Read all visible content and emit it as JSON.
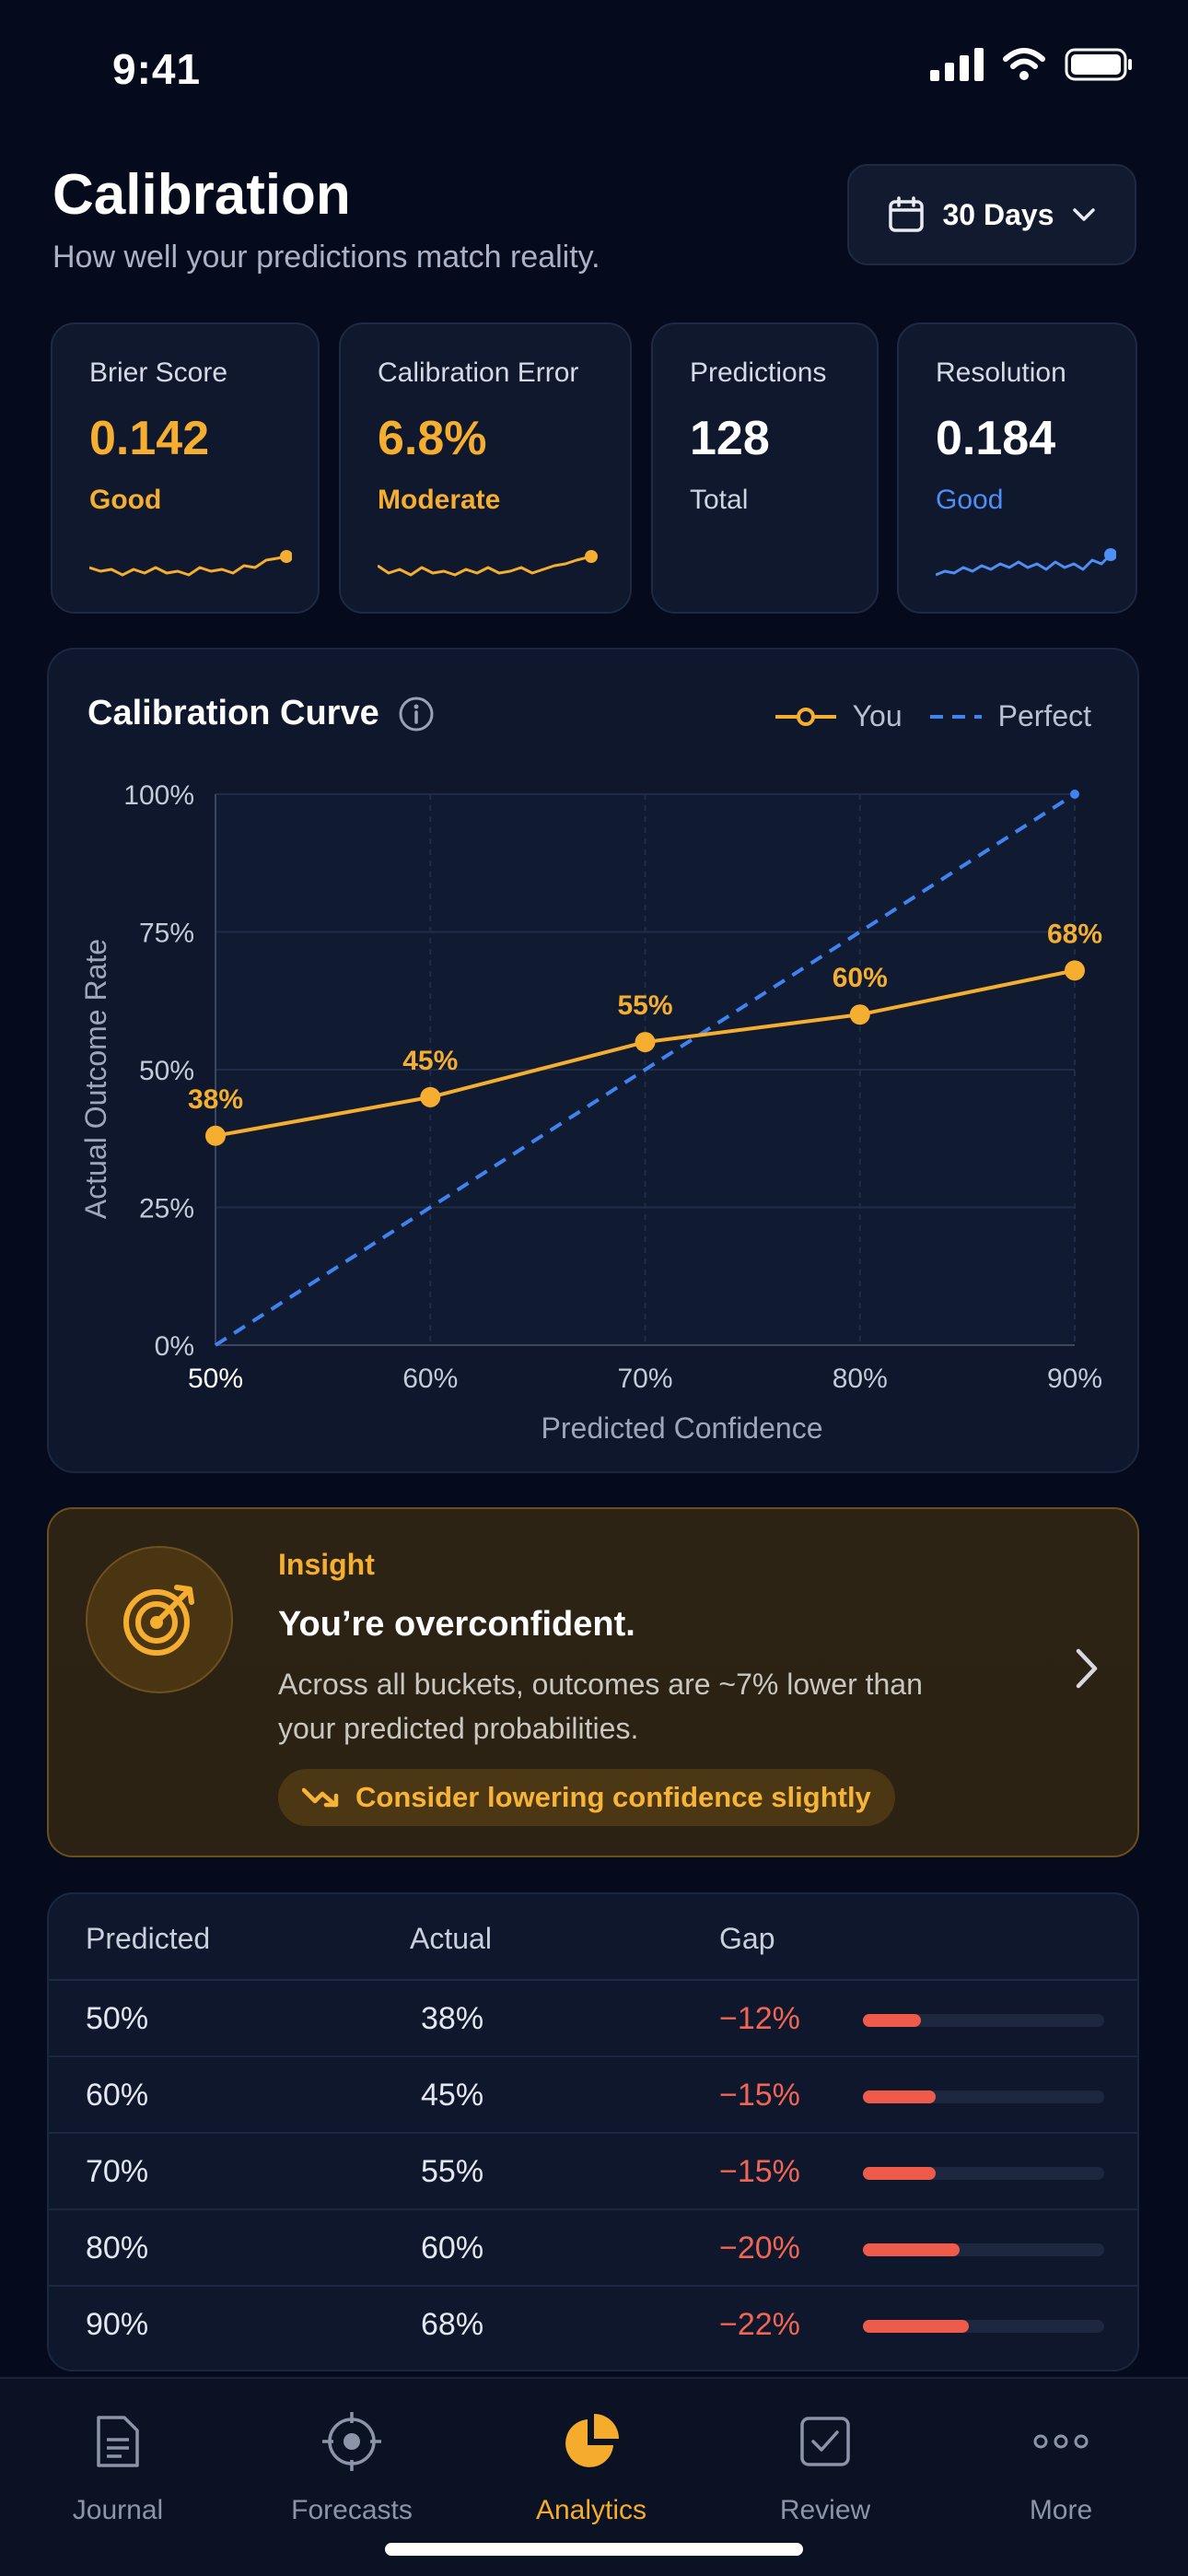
{
  "status_bar": {
    "time": "9:41"
  },
  "header": {
    "title": "Calibration",
    "subtitle": "How well your predictions match reality.",
    "range_label": "30 Days",
    "range_icon": "calendar-icon"
  },
  "metrics": [
    {
      "label": "Brier Score",
      "value": "0.142",
      "status": "Good",
      "color": "#f5ae2f"
    },
    {
      "label": "Calibration Error",
      "value": "6.8%",
      "status": "Moderate",
      "color": "#f5ae2f"
    },
    {
      "label": "Predictions",
      "value": "128",
      "status": "Total",
      "color": "#ffffff"
    },
    {
      "label": "Resolution",
      "value": "0.184",
      "status": "Good",
      "color": "#4d8ff5"
    }
  ],
  "chart_data": {
    "type": "line",
    "title": "Calibration Curve",
    "xlabel": "Predicted Confidence",
    "ylabel": "Actual Outcome Rate",
    "x_ticks": [
      "50%",
      "60%",
      "70%",
      "80%",
      "90%"
    ],
    "y_ticks": [
      "0%",
      "25%",
      "50%",
      "75%",
      "100%"
    ],
    "xlim": [
      50,
      90
    ],
    "ylim": [
      0,
      100
    ],
    "legend_position": "top-right",
    "grid": true,
    "series": [
      {
        "name": "You",
        "style": "solid-markers",
        "color": "#f5ae2f",
        "x": [
          50,
          60,
          70,
          80,
          90
        ],
        "y": [
          38,
          45,
          55,
          60,
          68
        ],
        "labels": [
          "38%",
          "45%",
          "55%",
          "60%",
          "68%"
        ]
      },
      {
        "name": "Perfect",
        "style": "dashed",
        "color": "#3f82f0",
        "x": [
          50,
          90
        ],
        "y": [
          0,
          100
        ]
      }
    ]
  },
  "insight": {
    "kicker": "Insight",
    "heading": "You’re overconfident.",
    "body": "Across all buckets, outcomes are ~7% lower than your predicted probabilities.",
    "chip": "Consider lowering confidence slightly",
    "icon": "target-icon"
  },
  "table": {
    "headers": [
      "Predicted",
      "Actual",
      "Gap"
    ],
    "rows": [
      {
        "predicted": "50%",
        "actual": "38%",
        "gap": "−12%",
        "gap_value": 12
      },
      {
        "predicted": "60%",
        "actual": "45%",
        "gap": "−15%",
        "gap_value": 15
      },
      {
        "predicted": "70%",
        "actual": "55%",
        "gap": "−15%",
        "gap_value": 15
      },
      {
        "predicted": "80%",
        "actual": "60%",
        "gap": "−20%",
        "gap_value": 20
      },
      {
        "predicted": "90%",
        "actual": "68%",
        "gap": "−22%",
        "gap_value": 22
      }
    ]
  },
  "nav": {
    "items": [
      {
        "label": "Journal",
        "icon": "journal-icon",
        "active": false
      },
      {
        "label": "Forecasts",
        "icon": "crosshair-icon",
        "active": false
      },
      {
        "label": "Analytics",
        "icon": "pie-chart-icon",
        "active": true
      },
      {
        "label": "Review",
        "icon": "checkbox-icon",
        "active": false
      },
      {
        "label": "More",
        "icon": "more-dots-icon",
        "active": false
      }
    ]
  }
}
